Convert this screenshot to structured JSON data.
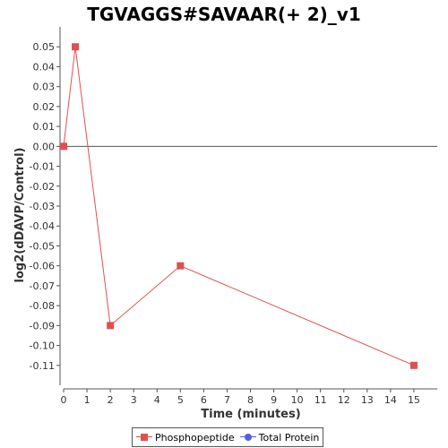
{
  "chart_data": {
    "type": "line",
    "title": "TGVAGGS#SAVAAR(+ 2)_v1",
    "xlabel": "Time (minutes)",
    "ylabel": "log2(dDAVP/Control)",
    "xlim": [
      0,
      16
    ],
    "ylim": [
      -0.12,
      0.06
    ],
    "x_ticks": [
      "0",
      "1",
      "2",
      "3",
      "4",
      "5",
      "6",
      "7",
      "8",
      "9",
      "10",
      "11",
      "12",
      "13",
      "14",
      "15"
    ],
    "y_ticks": [
      "0.05",
      "0.04",
      "0.03",
      "0.02",
      "0.01",
      "0.00",
      "-0.01",
      "-0.02",
      "-0.03",
      "-0.04",
      "-0.05",
      "-0.06",
      "-0.07",
      "-0.08",
      "-0.09",
      "-0.10",
      "-0.11"
    ],
    "grid": false,
    "zero_line": true,
    "legend_position": "bottom",
    "series": [
      {
        "name": "Phosphopeptide",
        "color": "#e05050",
        "marker": "square",
        "points": [
          {
            "x": 0,
            "y": 0.0
          },
          {
            "x": 0.5,
            "y": 0.05
          },
          {
            "x": 2,
            "y": -0.09
          },
          {
            "x": 5,
            "y": -0.06
          },
          {
            "x": 15,
            "y": -0.11
          }
        ]
      },
      {
        "name": "Total Protein",
        "color": "#5060e0",
        "marker": "circle",
        "points": []
      }
    ]
  }
}
